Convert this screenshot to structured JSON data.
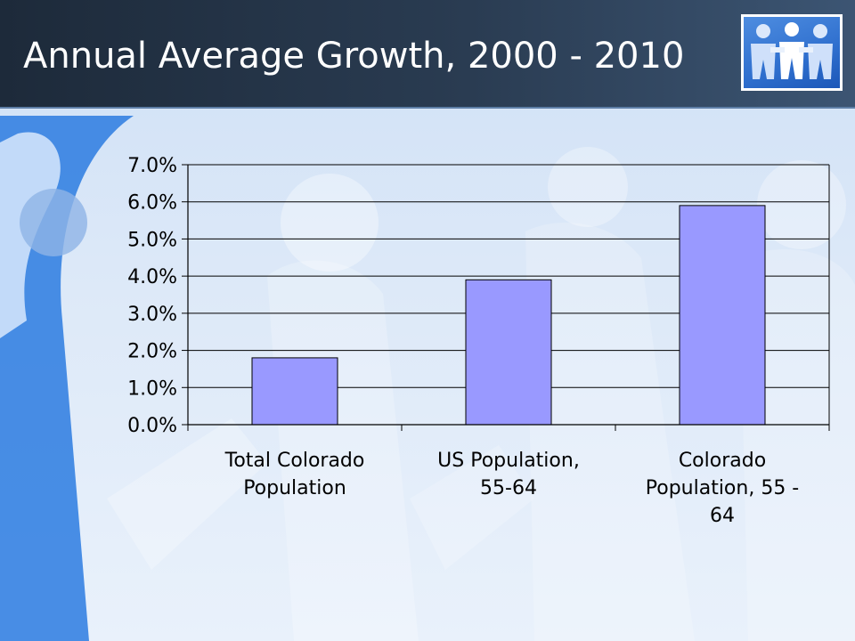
{
  "slide": {
    "title": "Annual Average Growth, 2000 - 2010"
  },
  "colors": {
    "title_bar": "#24344a",
    "bar_fill": "#9999ff",
    "bar_stroke": "#000000",
    "gridline": "#000000",
    "background": "#dbe8f8"
  },
  "icons": {
    "logo": "paper-people-chain-icon"
  },
  "chart_data": {
    "type": "bar",
    "categories": [
      [
        "Total Colorado",
        "Population"
      ],
      [
        "US Population,",
        "55-64"
      ],
      [
        "Colorado",
        "Population, 55 -",
        "64"
      ]
    ],
    "values": [
      1.8,
      3.9,
      5.9
    ],
    "y_unit": "%",
    "ylim": [
      0,
      7
    ],
    "y_ticks": [
      0,
      1,
      2,
      3,
      4,
      5,
      6,
      7
    ],
    "y_tick_labels": [
      "0.0%",
      "1.0%",
      "2.0%",
      "3.0%",
      "4.0%",
      "5.0%",
      "6.0%",
      "7.0%"
    ],
    "grid": true,
    "legend": "none",
    "title": "",
    "xlabel": "",
    "ylabel": ""
  }
}
